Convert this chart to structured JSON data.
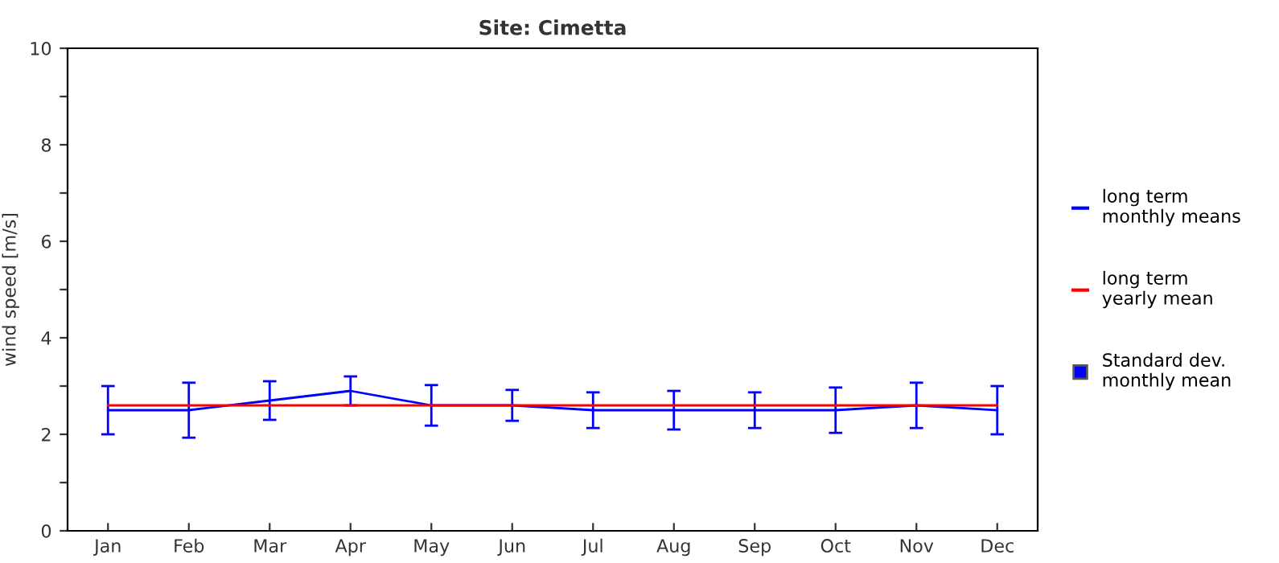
{
  "chart_data": {
    "type": "line",
    "title": "Site: Cimetta",
    "ylabel": "wind speed [m/s]",
    "categories": [
      "Jan",
      "Feb",
      "Mar",
      "Apr",
      "May",
      "Jun",
      "Jul",
      "Aug",
      "Sep",
      "Oct",
      "Nov",
      "Dec"
    ],
    "series": [
      {
        "name": "long term\nmonthly means",
        "color": "#0000ff",
        "values": [
          2.5,
          2.5,
          2.7,
          2.9,
          2.6,
          2.6,
          2.5,
          2.5,
          2.5,
          2.5,
          2.6,
          2.5
        ],
        "errors": [
          0.5,
          0.57,
          0.4,
          0.3,
          0.42,
          0.32,
          0.37,
          0.4,
          0.37,
          0.47,
          0.47,
          0.5
        ]
      },
      {
        "name": "long term\nyearly mean",
        "type": "line",
        "color": "#ff0000",
        "values": [
          2.6,
          2.6,
          2.6,
          2.6,
          2.6,
          2.6,
          2.6,
          2.6,
          2.6,
          2.6,
          2.6,
          2.6
        ]
      },
      {
        "name": "Standard dev.\nmonthly mean",
        "type": "scatter",
        "color": "#0000ff",
        "values": [
          null,
          null,
          null,
          null,
          null,
          null,
          null,
          null,
          null,
          null,
          null,
          null
        ]
      }
    ],
    "ylim": [
      0,
      10
    ],
    "yticks": [
      0,
      {
        "value": 1,
        "label": null
      },
      2,
      {
        "value": 3,
        "label": null
      },
      4,
      {
        "value": 5,
        "label": null
      },
      6,
      {
        "value": 7,
        "label": null
      },
      8,
      {
        "value": 9,
        "label": null
      },
      10
    ],
    "grid": false,
    "legend": "right"
  }
}
